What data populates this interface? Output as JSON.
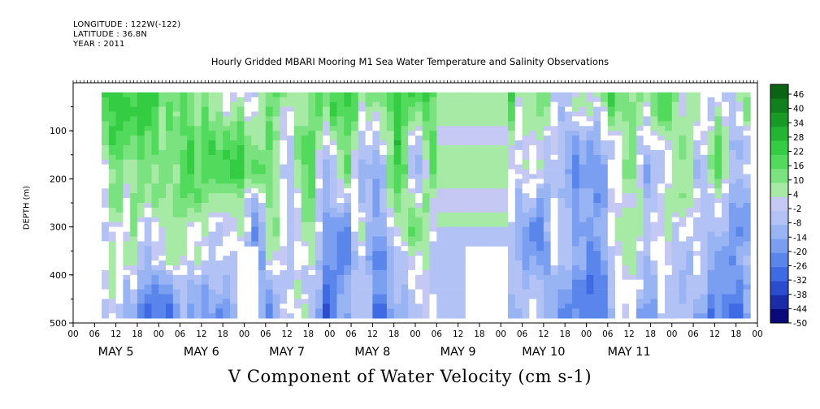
{
  "header": {
    "longitude": "LONGITUDE : 122W(-122)",
    "latitude": "LATITUDE : 36.8N",
    "year": "YEAR : 2011"
  },
  "title": "Hourly Gridded MBARI Mooring M1 Sea Water Temperature and Salinity Observations",
  "bottom_title": "V Component of Water Velocity (cm s-1)",
  "chart_data": {
    "type": "heatmap",
    "title": "Hourly Gridded MBARI Mooring M1 Sea Water Temperature and Salinity Observations",
    "ylabel": "DEPTH (m)",
    "ylim": [
      500,
      0
    ],
    "y_ticks": [
      "100",
      "200",
      "300",
      "400",
      "500"
    ],
    "x_hour_ticks": [
      "00",
      "06",
      "12",
      "18",
      "00",
      "06",
      "12",
      "18",
      "00",
      "06",
      "12",
      "18",
      "00",
      "06",
      "12",
      "18",
      "00",
      "06",
      "12",
      "18",
      "00",
      "06",
      "12",
      "18",
      "00",
      "06",
      "12",
      "18",
      "00",
      "06",
      "12",
      "18",
      "00"
    ],
    "day_labels": [
      "MAY  5",
      "MAY  6",
      "MAY  7",
      "MAY  8",
      "MAY  9",
      "MAY 10",
      "MAY 11"
    ],
    "colorbar_labels": [
      "46",
      "40",
      "34",
      "28",
      "22",
      "16",
      "10",
      "4",
      "-2",
      "-8",
      "-14",
      "-20",
      "-26",
      "-32",
      "-38",
      "-44",
      "-50"
    ],
    "colorbar_range": [
      -50,
      52
    ],
    "colorbar_levels": 17,
    "depth_range_m": [
      20,
      490
    ],
    "time_range_hours_from_may5_00": [
      8,
      190
    ],
    "colormap": [
      "#0a0a7a",
      "#1a2ca8",
      "#2c4ccf",
      "#3e6ae4",
      "#5a86ec",
      "#7a9ef0",
      "#98b4f2",
      "#b2c2f4",
      "#c4c8f2",
      "#a6eaa6",
      "#7ae27e",
      "#52da5c",
      "#34cc42",
      "#22b432",
      "#189a26",
      "#10801c",
      "#0a6414"
    ],
    "zero_color": "#ffffff",
    "description_rows": [
      {
        "depth_band": [
          20,
          140
        ],
        "dominant": "positive (green)"
      },
      {
        "depth_band": [
          140,
          260
        ],
        "dominant": "mixed"
      },
      {
        "depth_band": [
          260,
          490
        ],
        "dominant": "negative (blue)"
      }
    ],
    "grid": false,
    "legend": "colorbar right"
  }
}
